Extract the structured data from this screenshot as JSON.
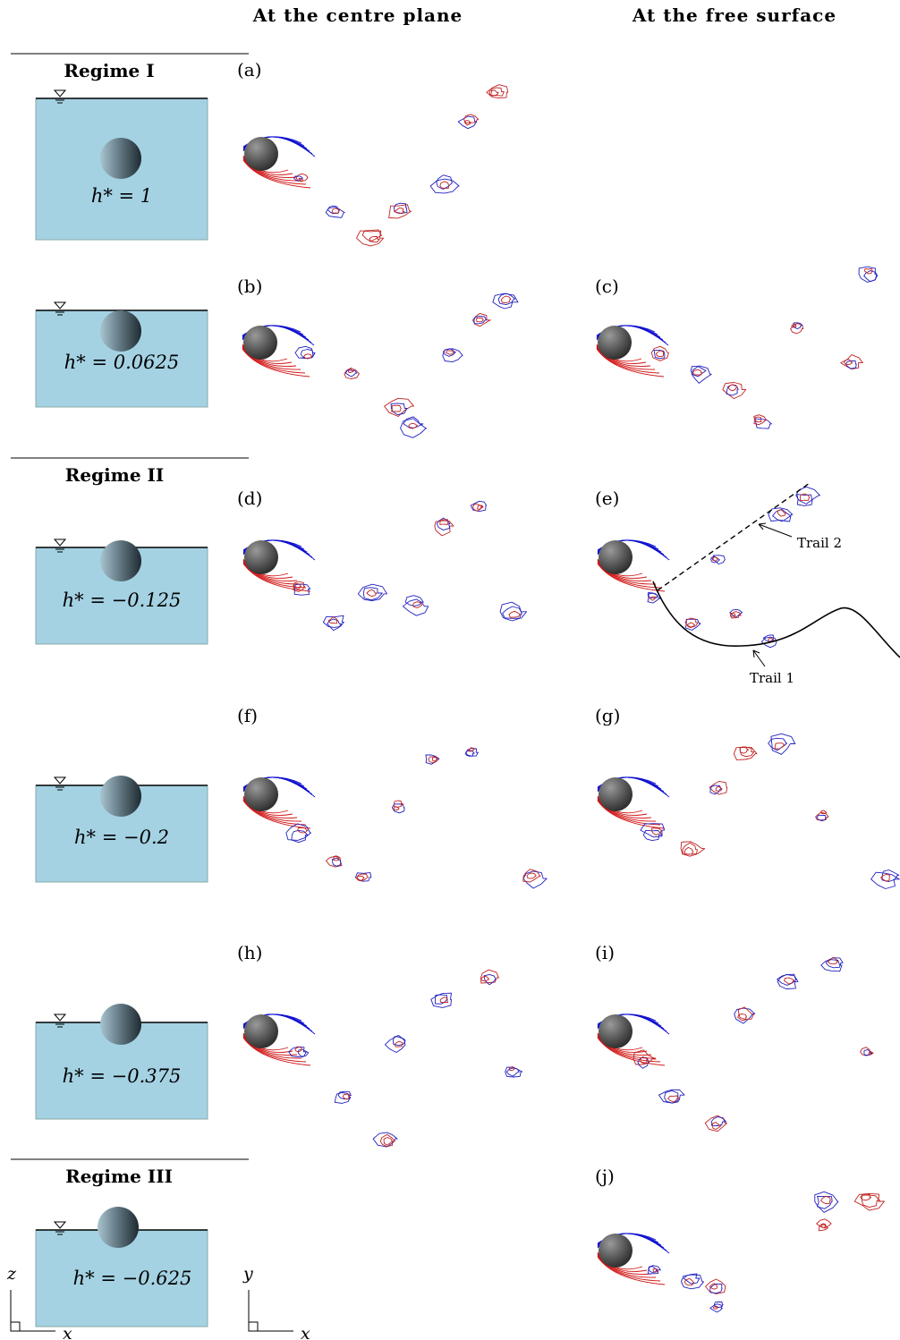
{
  "header": {
    "columns": [
      "At the centre plane",
      "At the free surface"
    ]
  },
  "regimes": [
    "Regime I",
    "Regime II",
    "Regime III"
  ],
  "depths": [
    "h* = 1",
    "h* = 0.0625",
    "h* = −0.125",
    "h* = −0.2",
    "h* = −0.375",
    "h* = −0.625"
  ],
  "panels": [
    "(a)",
    "(b)",
    "(c)",
    "(d)",
    "(e)",
    "(f)",
    "(g)",
    "(h)",
    "(i)",
    "(j)"
  ],
  "annotations": [
    "Trail 2",
    "Trail 1"
  ],
  "axes": {
    "left": [
      "z",
      "x"
    ],
    "right": [
      "y",
      "x"
    ]
  }
}
